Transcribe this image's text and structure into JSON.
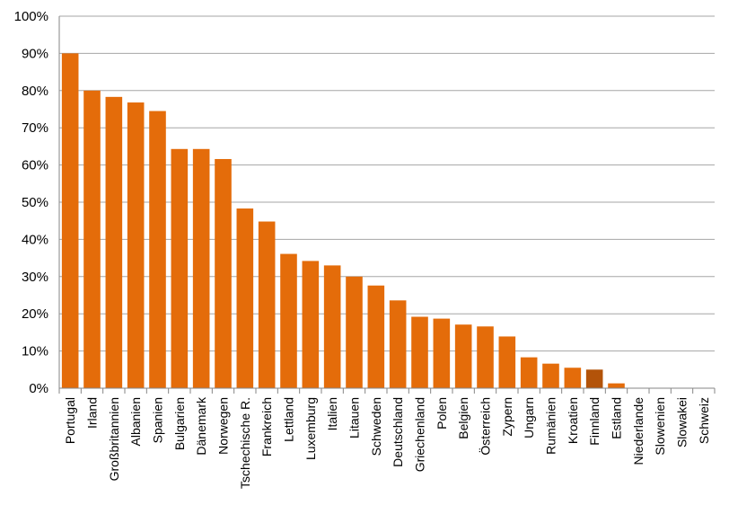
{
  "chart_data": {
    "type": "bar",
    "title": "",
    "xlabel": "",
    "ylabel": "",
    "ylim": [
      0,
      100
    ],
    "yticks": [
      0,
      10,
      20,
      30,
      40,
      50,
      60,
      70,
      80,
      90,
      100
    ],
    "ytick_suffix": "%",
    "grid": true,
    "legend": "none",
    "bar_color": "#e46c0a",
    "highlight_color": "#b35309",
    "highlight_category": "Finnland",
    "categories": [
      "Portugal",
      "Irland",
      "Großbritannien",
      "Albanien",
      "Spanien",
      "Bulgarien",
      "Dänemark",
      "Norwegen",
      "Tschechische R.",
      "Frankreich",
      "Lettland",
      "Luxemburg",
      "Italien",
      "Litauen",
      "Schweden",
      "Deutschland",
      "Griechenland",
      "Polen",
      "Belgien",
      "Österreich",
      "Zypern",
      "Ungarn",
      "Rumänien",
      "Kroatien",
      "Finnland",
      "Estland",
      "Niederlande",
      "Slowenien",
      "Slowakei",
      "Schweiz"
    ],
    "values": [
      90,
      80,
      78.3,
      76.8,
      74.5,
      64.3,
      64.3,
      61.6,
      48.3,
      44.8,
      36.1,
      34.2,
      33.0,
      30.0,
      27.6,
      23.6,
      19.2,
      18.7,
      17.1,
      16.6,
      13.9,
      8.3,
      6.6,
      5.5,
      5.0,
      1.3,
      0,
      0,
      0,
      0
    ]
  }
}
